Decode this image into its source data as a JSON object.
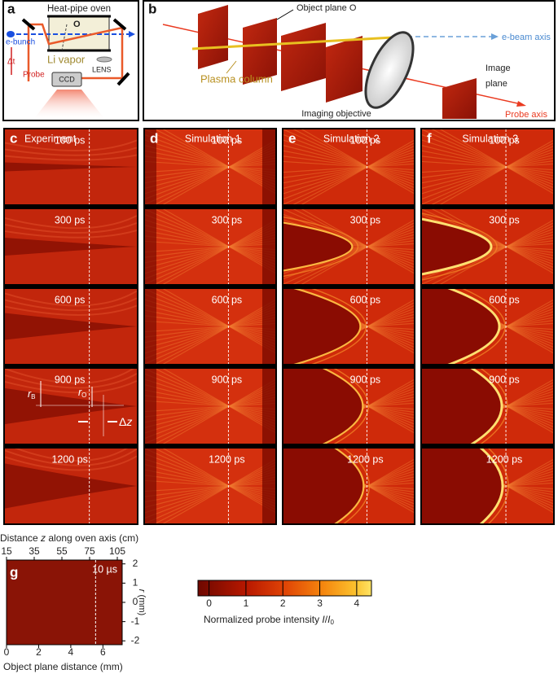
{
  "panel_a": {
    "label": "a",
    "oven": "Heat-pipe oven",
    "object_plane": "O",
    "ebunch": "e-bunch",
    "delta_t": "Δt",
    "probe": "Probe",
    "vapor": "Li vapor",
    "camera": "CCD",
    "lens": "LENS"
  },
  "panel_b": {
    "label": "b",
    "object_plane": "Object plane O",
    "ebeam_axis": "e-beam axis",
    "image_plane": [
      "Image",
      "plane"
    ],
    "plasma_column": "Plasma column",
    "objective": "Imaging objective",
    "probe_axis": "Probe axis"
  },
  "grid": {
    "columns": [
      {
        "label": "c",
        "title": "Experiment"
      },
      {
        "label": "d",
        "title": "Simulation 1"
      },
      {
        "label": "e",
        "title": "Simulation 2"
      },
      {
        "label": "f",
        "title": "Simulation 3"
      }
    ],
    "rows": [
      "100 ps",
      "300 ps",
      "600 ps",
      "900 ps",
      "1200 ps"
    ],
    "annotations": {
      "r_b": {
        "symbol": "r",
        "sub": "B"
      },
      "r_o": {
        "symbol": "r",
        "sub": "O"
      },
      "delta_z": {
        "symbol": "Δ",
        "var": "z"
      }
    }
  },
  "panel_g": {
    "label": "g",
    "time": "10 µs",
    "top_axis_label": [
      "Distance ",
      "z",
      " along oven axis (cm)"
    ],
    "top_tick_labels": [
      "15",
      "35",
      "55",
      "75",
      "105"
    ],
    "xlabel": "Object plane distance (mm)",
    "xlim": [
      0,
      7.2
    ],
    "xticks": [
      0,
      2,
      4,
      6
    ],
    "ylabel": [
      "r",
      " (mm)"
    ],
    "ylim": [
      -2.2,
      2.2
    ],
    "yticks": [
      2,
      1,
      0,
      -1,
      -2
    ]
  },
  "colorbar": {
    "label": [
      "Normalized probe intensity ",
      "I",
      "/",
      "I",
      "0"
    ],
    "clim": [
      -0.3,
      4.4
    ],
    "ticks": [
      0,
      1,
      2,
      3,
      4
    ]
  }
}
